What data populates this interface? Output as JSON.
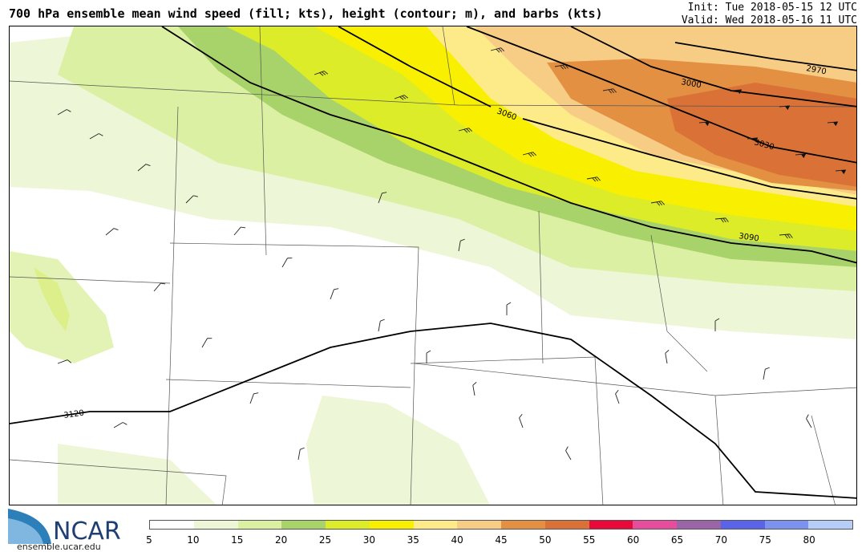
{
  "header": {
    "title": "700 hPa ensemble mean wind speed (fill; kts), height (contour; m), and barbs (kts)",
    "init": "Init: Tue 2018-05-15 12 UTC",
    "valid": "Valid: Wed 2018-05-16 11 UTC"
  },
  "logo": {
    "name": "NCAR",
    "url": "ensemble.ucar.edu"
  },
  "colorbar": {
    "colors": [
      "#ffffff",
      "#edf6d6",
      "#dcf0a3",
      "#a8d26a",
      "#dcec28",
      "#f8f000",
      "#fdeb8a",
      "#f7cc85",
      "#e49043",
      "#da7237",
      "#e8083a",
      "#e64d9c",
      "#9a64a6",
      "#5b63e8",
      "#7b93ee",
      "#b6cdf7"
    ],
    "ticks": [
      "5",
      "10",
      "15",
      "20",
      "25",
      "30",
      "35",
      "40",
      "45",
      "50",
      "55",
      "60",
      "65",
      "70",
      "75",
      "80"
    ]
  },
  "contours": [
    {
      "label": "2970"
    },
    {
      "label": "3000"
    },
    {
      "label": "3030"
    },
    {
      "label": "3060"
    },
    {
      "label": "3090"
    },
    {
      "label": "3120"
    }
  ]
}
